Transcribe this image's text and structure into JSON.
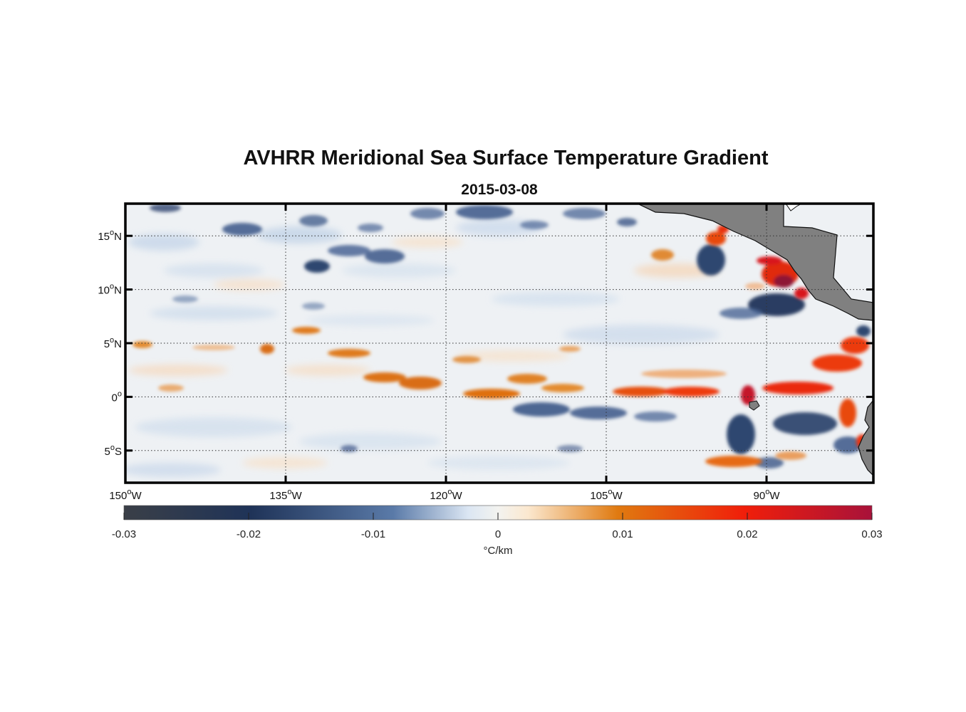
{
  "title": "AVHRR Meridional Sea Surface Temperature Gradient",
  "subtitle": "2015-03-08",
  "map": {
    "lon_range": [
      -150,
      -80
    ],
    "lat_range": [
      -8,
      18
    ],
    "lon_ticks": [
      {
        "lon": -150,
        "label": "150",
        "hem": "W"
      },
      {
        "lon": -135,
        "label": "135",
        "hem": "W"
      },
      {
        "lon": -120,
        "label": "120",
        "hem": "W"
      },
      {
        "lon": -105,
        "label": "105",
        "hem": "W"
      },
      {
        "lon": -90,
        "label": "90",
        "hem": "W"
      }
    ],
    "lat_ticks": [
      {
        "lat": 15,
        "label": "15",
        "hem": "N"
      },
      {
        "lat": 10,
        "label": "10",
        "hem": "N"
      },
      {
        "lat": 5,
        "label": "5",
        "hem": "N"
      },
      {
        "lat": 0,
        "label": "0",
        "hem": ""
      },
      {
        "lat": -5,
        "label": "5",
        "hem": "S"
      }
    ],
    "land_color": "#808080",
    "grid": "dotted"
  },
  "colorbar": {
    "min": -0.03,
    "max": 0.03,
    "ticks": [
      "-0.03",
      "-0.02",
      "-0.01",
      "0",
      "0.01",
      "0.02",
      "0.03"
    ],
    "label": "°C/km",
    "stops": [
      "#3a3f47",
      "#1f3358",
      "#5a7aa8",
      "#e8eef5",
      "#fbe9d3",
      "#e07a10",
      "#f01e0a",
      "#a8123a"
    ]
  }
}
